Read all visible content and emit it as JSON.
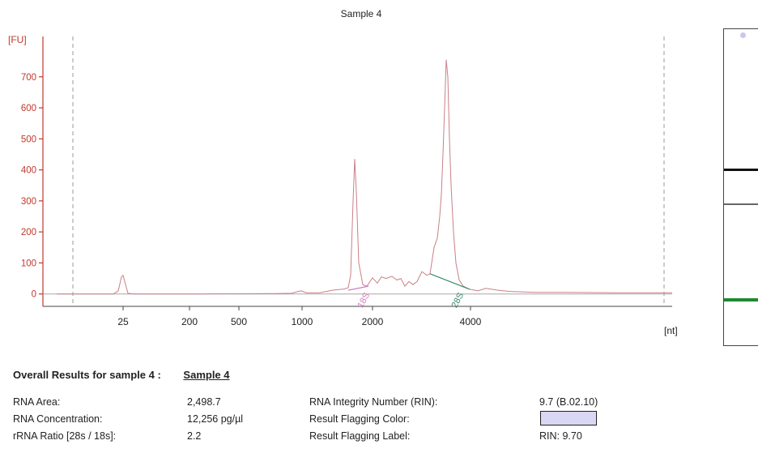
{
  "chart_data": {
    "type": "line",
    "title": "Sample 4",
    "ylabel": "[FU]",
    "xlabel": "[nt]",
    "y_ticks": [
      0,
      100,
      200,
      300,
      400,
      500,
      600,
      700
    ],
    "x_ticks": [
      "25",
      "200",
      "500",
      "1000",
      "2000",
      "4000"
    ],
    "ylim": [
      -40,
      830
    ],
    "grid": false,
    "peaks": [
      {
        "label": "18S",
        "peak_fu": 435
      },
      {
        "label": "28S",
        "peak_fu": 755
      }
    ],
    "lower_marker_peak_fu": 60,
    "series": [
      {
        "color": "#c98088",
        "points": [
          [
            70,
            0
          ],
          [
            140,
            0
          ],
          [
            146,
            10
          ],
          [
            150,
            55
          ],
          [
            152,
            60
          ],
          [
            154,
            40
          ],
          [
            158,
            2
          ],
          [
            165,
            0
          ],
          [
            250,
            0
          ],
          [
            340,
            1
          ],
          [
            360,
            2
          ],
          [
            368,
            8
          ],
          [
            372,
            10
          ],
          [
            378,
            4
          ],
          [
            395,
            4
          ],
          [
            410,
            12
          ],
          [
            425,
            16
          ],
          [
            430,
            20
          ],
          [
            433,
            60
          ],
          [
            436,
            300
          ],
          [
            438,
            435
          ],
          [
            440,
            330
          ],
          [
            443,
            100
          ],
          [
            448,
            30
          ],
          [
            453,
            25
          ],
          [
            460,
            52
          ],
          [
            466,
            35
          ],
          [
            471,
            55
          ],
          [
            477,
            50
          ],
          [
            484,
            57
          ],
          [
            490,
            45
          ],
          [
            495,
            50
          ],
          [
            500,
            25
          ],
          [
            505,
            40
          ],
          [
            510,
            30
          ],
          [
            515,
            40
          ],
          [
            521,
            72
          ],
          [
            527,
            60
          ],
          [
            531,
            65
          ],
          [
            536,
            150
          ],
          [
            540,
            180
          ],
          [
            543,
            250
          ],
          [
            545,
            320
          ],
          [
            547,
            450
          ],
          [
            549,
            600
          ],
          [
            551,
            755
          ],
          [
            553,
            700
          ],
          [
            555,
            500
          ],
          [
            557,
            350
          ],
          [
            560,
            200
          ],
          [
            563,
            100
          ],
          [
            567,
            45
          ],
          [
            572,
            25
          ],
          [
            580,
            15
          ],
          [
            590,
            10
          ],
          [
            600,
            18
          ],
          [
            615,
            12
          ],
          [
            630,
            8
          ],
          [
            660,
            5
          ],
          [
            700,
            5
          ],
          [
            760,
            4
          ],
          [
            830,
            4
          ]
        ]
      }
    ],
    "baselines": [
      {
        "color": "#d27ec0",
        "points": [
          [
            430,
            12
          ],
          [
            455,
            25
          ]
        ]
      },
      {
        "color": "#3a8a6e",
        "points": [
          [
            531,
            65
          ],
          [
            580,
            15
          ]
        ]
      }
    ]
  },
  "gel_bands": [
    {
      "color": "#111111",
      "position_fraction": 0.44
    },
    {
      "color": "#666666",
      "position_fraction": 0.55
    },
    {
      "color": "#1e8a2e",
      "position_fraction": 0.85
    }
  ],
  "results": {
    "title": "Overall Results for sample 4  :",
    "sample_name": "Sample 4",
    "left": [
      {
        "label": "RNA Area:",
        "value": "2,498.7"
      },
      {
        "label": "RNA Concentration:",
        "value": "12,256 pg/µl"
      },
      {
        "label": "rRNA Ratio [28s / 18s]:",
        "value": "2.2"
      }
    ],
    "right": [
      {
        "label": "RNA Integrity Number (RIN):",
        "value": "9.7  (B.02.10)"
      },
      {
        "label": "Result Flagging Color:",
        "value": ""
      },
      {
        "label": "Result Flagging Label:",
        "value": "RIN: 9.70"
      }
    ],
    "flag_color": "#d9d7f3"
  }
}
